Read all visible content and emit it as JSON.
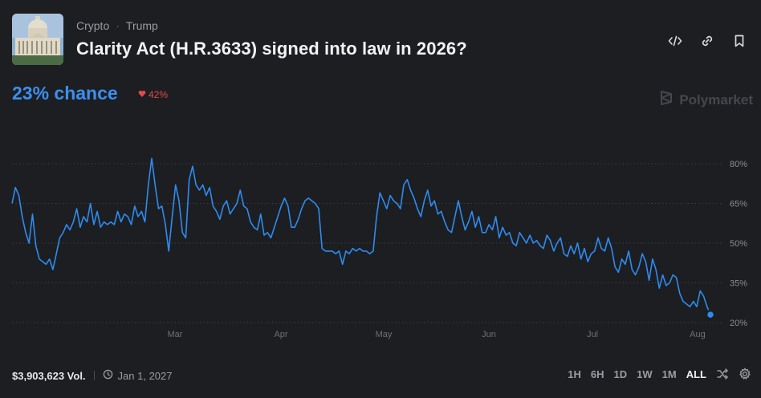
{
  "market": {
    "breadcrumb": [
      "Crypto",
      "Trump"
    ],
    "title": "Clarity Act (H.R.3633) signed into law in 2026?",
    "chance": "23% chance",
    "delta": "42%",
    "delta_direction": "down",
    "brand": "Polymarket",
    "icons": [
      "embed-code-icon",
      "link-icon",
      "bookmark-icon"
    ]
  },
  "footer": {
    "volume": "$3,903,623 Vol.",
    "end_date": "Jan 1, 2027",
    "ranges": [
      "1H",
      "6H",
      "1D",
      "1W",
      "1M",
      "ALL"
    ],
    "active_range": "ALL"
  },
  "colors": {
    "accent": "#3b8ff0",
    "background": "#1d1e21",
    "negative": "#e04a4a"
  },
  "chart_data": {
    "type": "line",
    "xlabels": [
      "Mar",
      "Apr",
      "May",
      "Jun",
      "Jul",
      "Aug"
    ],
    "ylabels": [
      "80%",
      "65%",
      "50%",
      "35%",
      "20%"
    ],
    "yticks": [
      80,
      65,
      50,
      35,
      20
    ],
    "ylim": [
      16,
      84
    ],
    "grid": true,
    "series": [
      {
        "x": [
          0,
          1,
          2,
          3,
          4,
          5,
          6,
          7,
          8,
          9,
          10,
          11,
          12,
          13,
          14,
          15,
          16,
          17,
          18,
          19,
          20,
          21,
          22,
          23,
          24,
          25,
          26,
          27,
          28,
          29,
          30,
          31,
          32,
          33,
          34,
          35,
          36,
          37,
          38,
          39,
          40,
          41,
          42,
          43,
          44,
          45,
          46,
          47,
          48,
          49,
          50,
          51,
          52,
          53,
          54,
          55,
          56,
          57,
          58,
          59,
          60,
          61,
          62,
          63,
          64,
          65,
          66,
          67,
          68,
          69,
          70,
          71,
          72,
          73,
          74,
          75,
          76,
          77,
          78,
          79,
          80,
          81,
          82,
          83,
          84,
          85,
          86,
          87,
          88,
          89,
          90,
          91,
          92,
          93,
          94,
          95,
          96,
          97,
          98,
          99,
          100,
          101,
          102,
          103,
          104,
          105,
          106,
          107,
          108,
          109,
          110,
          111,
          112,
          113,
          114,
          115,
          116,
          117,
          118,
          119,
          120,
          121,
          122,
          123,
          124,
          125,
          126,
          127,
          128,
          129,
          130,
          131,
          132,
          133,
          134,
          135,
          136,
          137,
          138,
          139,
          140,
          141,
          142,
          143,
          144,
          145,
          146,
          147,
          148,
          149,
          150,
          151,
          152,
          153,
          154,
          155,
          156,
          157,
          158,
          159,
          160,
          161,
          162,
          163,
          164,
          165,
          166,
          167,
          168,
          169,
          170,
          171,
          172,
          173,
          174,
          175,
          176,
          177,
          178,
          179,
          180,
          181,
          182,
          183,
          184,
          185,
          186,
          187,
          188,
          189,
          190,
          191,
          192,
          193,
          194,
          195,
          196,
          197,
          198,
          199,
          200,
          201,
          202,
          203,
          204,
          205
        ],
        "y": [
          65,
          71,
          68,
          60,
          54,
          50,
          61,
          49,
          44,
          43,
          42,
          44,
          40,
          46,
          52,
          54,
          57,
          55,
          58,
          63,
          56,
          60,
          58,
          65,
          57,
          62,
          56,
          58,
          57,
          58,
          57,
          62,
          58,
          61,
          60,
          57,
          64,
          60,
          62,
          58,
          72,
          82,
          72,
          63,
          64,
          57,
          47,
          60,
          72,
          66,
          54,
          52,
          74,
          79,
          72,
          70,
          72,
          68,
          71,
          64,
          62,
          59,
          64,
          66,
          61,
          63,
          65,
          70,
          64,
          63,
          58,
          56,
          55,
          61,
          53,
          54,
          52,
          56,
          60,
          64,
          67,
          64,
          56,
          56,
          59,
          63,
          66,
          67,
          66,
          65,
          63,
          48,
          47,
          47,
          47,
          46,
          47,
          42,
          47,
          46,
          48,
          47,
          48,
          47,
          47,
          46,
          47,
          60,
          69,
          66,
          63,
          68,
          66,
          65,
          63,
          72,
          74,
          70,
          67,
          63,
          60,
          66,
          70,
          64,
          66,
          61,
          62,
          58,
          55,
          54,
          60,
          66,
          60,
          55,
          58,
          62,
          56,
          60,
          54,
          54,
          57,
          55,
          60,
          52,
          56,
          53,
          54,
          50,
          49,
          54,
          52,
          50,
          53,
          50,
          51,
          49,
          48,
          53,
          51,
          47,
          50,
          52,
          46,
          45,
          49,
          46,
          50,
          44,
          48,
          43,
          46,
          47,
          52,
          48,
          47,
          52,
          48,
          41,
          39,
          44,
          42,
          47,
          40,
          38,
          41,
          46,
          43,
          36,
          44,
          40,
          33,
          38,
          34,
          35,
          38,
          37,
          31,
          28,
          27,
          26,
          28,
          26,
          32,
          30,
          26,
          23
        ]
      }
    ]
  }
}
